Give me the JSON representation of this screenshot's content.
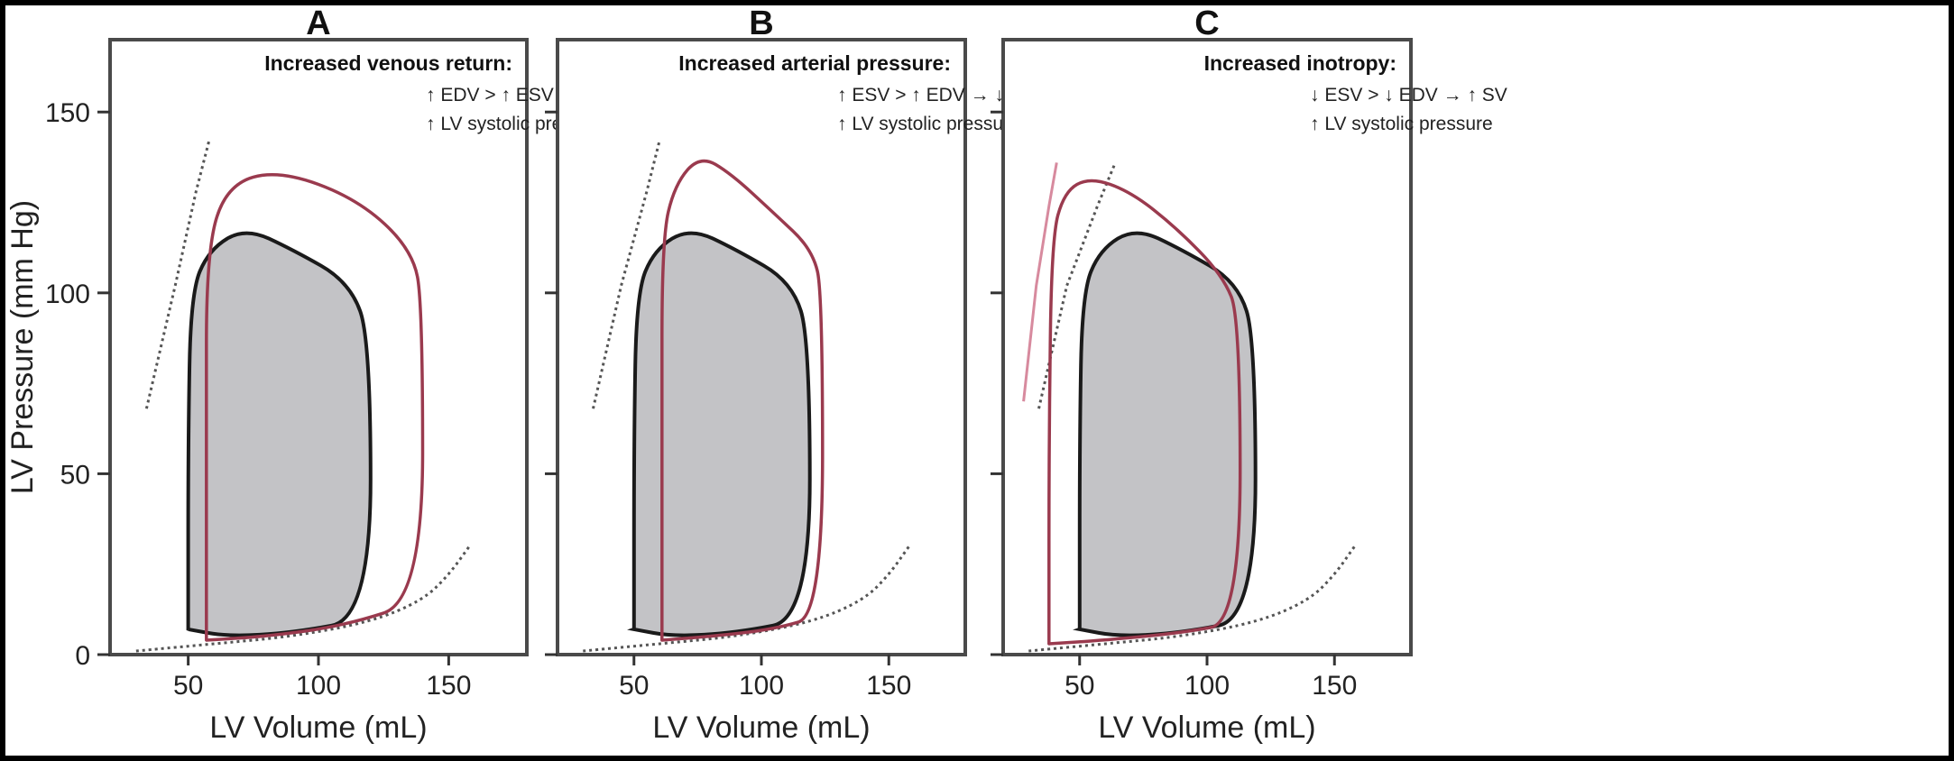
{
  "chart_data": [
    {
      "type": "line",
      "panel": "A",
      "annotation": {
        "heading": "Increased venous return:",
        "lines": [
          "↑ EDV > ↑ ESV → ↑ SV",
          "↑ LV systolic pressure"
        ]
      },
      "xlabel": "LV Volume (mL)",
      "ylabel": "LV Pressure (mm Hg)",
      "xlim": [
        20,
        180
      ],
      "ylim": [
        0,
        170
      ],
      "xticks": [
        50,
        100,
        150
      ],
      "yticks": [
        0,
        50,
        100,
        150
      ],
      "esp_line": [
        [
          34,
          68
        ],
        [
          45,
          102
        ],
        [
          53,
          128
        ],
        [
          58,
          142
        ]
      ],
      "edp_curve": [
        [
          30,
          1
        ],
        [
          60,
          3
        ],
        [
          90,
          5
        ],
        [
          120,
          9
        ],
        [
          140,
          15
        ],
        [
          150,
          22
        ],
        [
          158,
          30
        ]
      ],
      "baseline_loop": {
        "esv": 50,
        "edv": 120,
        "points": [
          [
            50,
            7
          ],
          [
            65,
            5
          ],
          [
            90,
            6
          ],
          [
            120,
            10
          ],
          [
            120,
            87
          ],
          [
            112,
            103
          ],
          [
            90,
            112
          ],
          [
            72,
            118
          ],
          [
            58,
            112
          ],
          [
            51,
            100
          ],
          [
            50,
            60
          ],
          [
            50,
            7
          ]
        ]
      },
      "altered_loop": {
        "esv": 57,
        "edv": 140,
        "points": [
          [
            57,
            4
          ],
          [
            80,
            5
          ],
          [
            110,
            8
          ],
          [
            140,
            15
          ],
          [
            140,
            97
          ],
          [
            136,
            112
          ],
          [
            115,
            126
          ],
          [
            85,
            134
          ],
          [
            65,
            130
          ],
          [
            57,
            112
          ],
          [
            57,
            60
          ],
          [
            57,
            4
          ]
        ]
      }
    },
    {
      "type": "line",
      "panel": "B",
      "annotation": {
        "heading": "Increased arterial pressure:",
        "lines": [
          "↑ ESV > ↑ EDV → ↓ SV",
          "↑ LV systolic pressure"
        ]
      },
      "xlabel": "LV Volume (mL)",
      "ylabel": "",
      "xlim": [
        20,
        180
      ],
      "ylim": [
        0,
        170
      ],
      "xticks": [
        50,
        100,
        150
      ],
      "yticks": [
        0,
        50,
        100,
        150
      ],
      "esp_line": [
        [
          34,
          68
        ],
        [
          45,
          102
        ],
        [
          55,
          128
        ],
        [
          60,
          142
        ]
      ],
      "edp_curve": [
        [
          30,
          1
        ],
        [
          60,
          3
        ],
        [
          90,
          5
        ],
        [
          120,
          9
        ],
        [
          140,
          15
        ],
        [
          150,
          22
        ],
        [
          158,
          30
        ]
      ],
      "baseline_loop": {
        "esv": 50,
        "edv": 119,
        "points": [
          [
            50,
            7
          ],
          [
            65,
            5
          ],
          [
            90,
            6
          ],
          [
            119,
            10
          ],
          [
            119,
            87
          ],
          [
            112,
            103
          ],
          [
            90,
            112
          ],
          [
            72,
            118
          ],
          [
            58,
            112
          ],
          [
            51,
            100
          ],
          [
            50,
            60
          ],
          [
            50,
            7
          ]
        ]
      },
      "altered_loop": {
        "esv": 61,
        "edv": 124,
        "points": [
          [
            61,
            4
          ],
          [
            80,
            5
          ],
          [
            105,
            7
          ],
          [
            124,
            11
          ],
          [
            124,
            100
          ],
          [
            120,
            112
          ],
          [
            105,
            122
          ],
          [
            88,
            133
          ],
          [
            76,
            138
          ],
          [
            66,
            130
          ],
          [
            61,
            115
          ],
          [
            61,
            60
          ],
          [
            61,
            4
          ]
        ]
      }
    },
    {
      "type": "line",
      "panel": "C",
      "annotation": {
        "heading": "Increased inotropy:",
        "lines": [
          "↓ ESV > ↓ EDV → ↑ SV",
          "↑ LV systolic pressure"
        ]
      },
      "xlabel": "LV Volume (mL)",
      "ylabel": "",
      "xlim": [
        20,
        180
      ],
      "ylim": [
        0,
        170
      ],
      "xticks": [
        50,
        100,
        150
      ],
      "yticks": [
        0,
        50,
        100,
        150
      ],
      "esp_line": [
        [
          34,
          68
        ],
        [
          45,
          102
        ],
        [
          57,
          124
        ],
        [
          64,
          136
        ]
      ],
      "esp_line_altered": [
        [
          28,
          70
        ],
        [
          33,
          102
        ],
        [
          38,
          124
        ],
        [
          41,
          136
        ]
      ],
      "edp_curve": [
        [
          30,
          1
        ],
        [
          60,
          3
        ],
        [
          90,
          5
        ],
        [
          120,
          9
        ],
        [
          140,
          15
        ],
        [
          150,
          22
        ],
        [
          158,
          30
        ]
      ],
      "baseline_loop": {
        "esv": 50,
        "edv": 119,
        "points": [
          [
            50,
            7
          ],
          [
            65,
            5
          ],
          [
            90,
            6
          ],
          [
            119,
            10
          ],
          [
            119,
            87
          ],
          [
            112,
            103
          ],
          [
            90,
            112
          ],
          [
            72,
            118
          ],
          [
            58,
            112
          ],
          [
            51,
            100
          ],
          [
            50,
            60
          ],
          [
            50,
            7
          ]
        ]
      },
      "altered_loop": {
        "esv": 38,
        "edv": 113,
        "points": [
          [
            38,
            3
          ],
          [
            60,
            4
          ],
          [
            90,
            6
          ],
          [
            113,
            9
          ],
          [
            113,
            93
          ],
          [
            106,
            105
          ],
          [
            88,
            118
          ],
          [
            70,
            128
          ],
          [
            54,
            132
          ],
          [
            44,
            128
          ],
          [
            39,
            115
          ],
          [
            38,
            60
          ],
          [
            38,
            3
          ]
        ]
      }
    }
  ]
}
